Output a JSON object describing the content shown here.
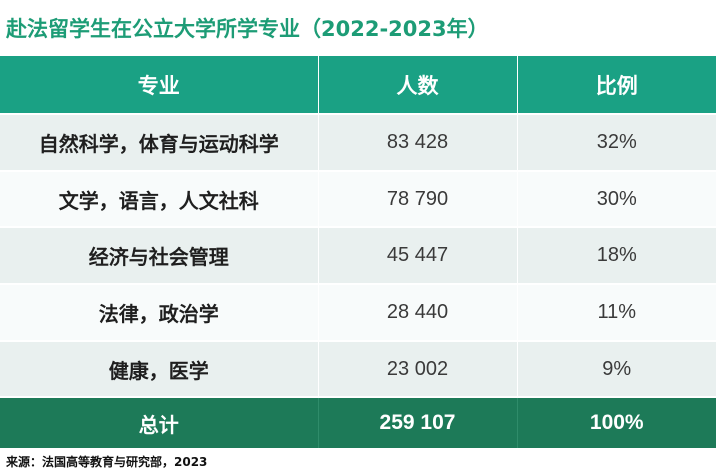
{
  "title": "赴法留学生在公立大学所学专业（2022-2023年）",
  "table": {
    "headers": [
      "专业",
      "人数",
      "比例"
    ],
    "rows": [
      {
        "major": "自然科学，体育与运动科学",
        "count": "83 428",
        "ratio": "32%"
      },
      {
        "major": "文学，语言，人文社科",
        "count": "78 790",
        "ratio": "30%"
      },
      {
        "major": "经济与社会管理",
        "count": "45 447",
        "ratio": "18%"
      },
      {
        "major": "法律，政治学",
        "count": "28 440",
        "ratio": "11%"
      },
      {
        "major": "健康，医学",
        "count": "23 002",
        "ratio": "9%"
      }
    ],
    "total": {
      "label": "总计",
      "count": "259 107",
      "ratio": "100%"
    }
  },
  "source": "来源：法国高等教育与研究部，2023",
  "colors": {
    "title": "#1d9c76",
    "header_bg": "#1aa184",
    "row_odd_bg": "#e9f0ef",
    "row_even_bg": "#f8fbfb",
    "total_bg": "#1d7a58"
  }
}
